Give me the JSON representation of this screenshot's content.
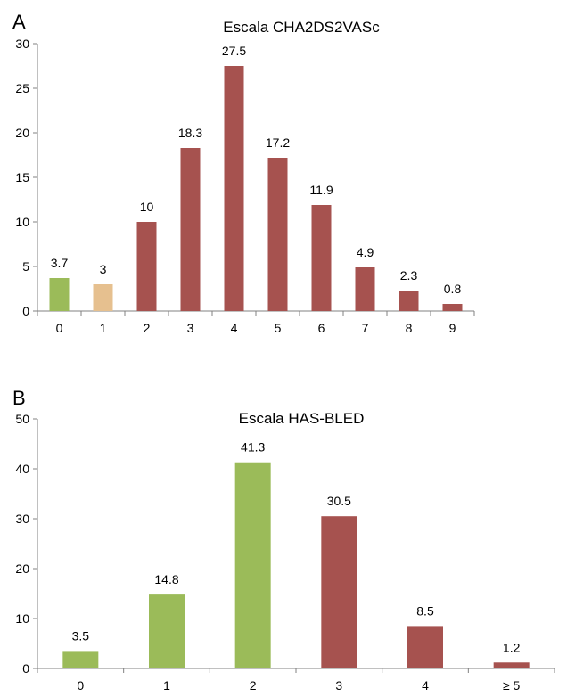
{
  "chart_data": [
    {
      "type": "bar",
      "panel": "A",
      "title": "Escala CHA2DS2VASc",
      "xlabel": "",
      "ylabel": "",
      "categories": [
        "0",
        "1",
        "2",
        "3",
        "4",
        "5",
        "6",
        "7",
        "8",
        "9"
      ],
      "values": [
        3.7,
        3,
        10,
        18.3,
        27.5,
        17.2,
        11.9,
        4.9,
        2.3,
        0.8
      ],
      "data_labels": [
        "3.7",
        "3",
        "10",
        "18.3",
        "27.5",
        "17.2",
        "11.9",
        "4.9",
        "2.3",
        "0.8"
      ],
      "bar_colors": [
        "#9bbb59",
        "#e6c08f",
        "#a6524f",
        "#a6524f",
        "#a6524f",
        "#a6524f",
        "#a6524f",
        "#a6524f",
        "#a6524f",
        "#a6524f"
      ],
      "ylim": [
        0,
        30
      ],
      "yticks": [
        "0",
        "5",
        "10",
        "15",
        "20",
        "25",
        "30"
      ],
      "grid": false
    },
    {
      "type": "bar",
      "panel": "B",
      "title": "Escala HAS-BLED",
      "xlabel": "",
      "ylabel": "",
      "categories": [
        "0",
        "1",
        "2",
        "3",
        "4",
        "≥ 5"
      ],
      "values": [
        3.5,
        14.8,
        41.3,
        30.5,
        8.5,
        1.2
      ],
      "data_labels": [
        "3.5",
        "14.8",
        "41.3",
        "30.5",
        "8.5",
        "1.2"
      ],
      "bar_colors": [
        "#9bbb59",
        "#9bbb59",
        "#9bbb59",
        "#a6524f",
        "#a6524f",
        "#a6524f"
      ],
      "ylim": [
        0,
        50
      ],
      "yticks": [
        "0",
        "10",
        "20",
        "30",
        "40",
        "50"
      ],
      "grid": false
    }
  ]
}
